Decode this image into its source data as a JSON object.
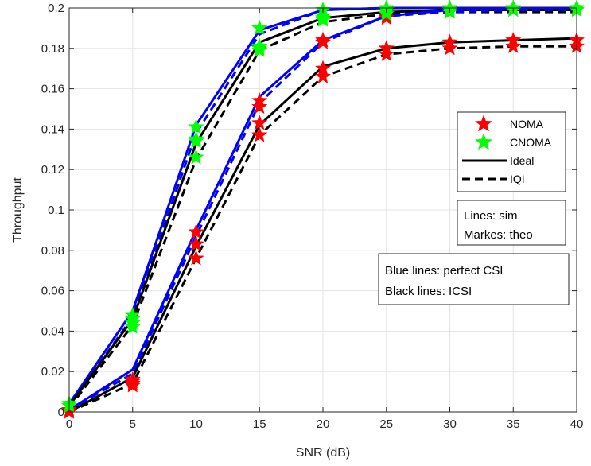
{
  "chart_data": {
    "type": "line",
    "title": "",
    "xlabel": "SNR (dB)",
    "ylabel": "Throughput",
    "xlim": [
      0,
      40
    ],
    "ylim": [
      0,
      0.2
    ],
    "x_ticks": [
      0,
      5,
      10,
      15,
      20,
      25,
      30,
      35,
      40
    ],
    "y_ticks": [
      0,
      0.02,
      0.04,
      0.06,
      0.08,
      0.1,
      0.12,
      0.14,
      0.16,
      0.18,
      0.2
    ],
    "x_tick_labels": [
      "0",
      "5",
      "10",
      "15",
      "20",
      "25",
      "30",
      "35",
      "40"
    ],
    "y_tick_labels": [
      "0",
      "0.02",
      "0.04",
      "0.06",
      "0.08",
      "0.1",
      "0.12",
      "0.14",
      "0.16",
      "0.18",
      "0.2"
    ],
    "grid": true,
    "x": [
      0,
      5,
      10,
      15,
      20,
      25,
      30,
      35,
      40
    ],
    "series": [
      {
        "key": "cnoma_perfect_ideal_sim",
        "color": "#0000ff",
        "dash": "solid",
        "values": [
          0.004,
          0.05,
          0.142,
          0.189,
          0.199,
          0.2,
          0.2,
          0.2,
          0.2
        ]
      },
      {
        "key": "cnoma_perfect_iqi_sim",
        "color": "#0000ff",
        "dash": "dashed",
        "values": [
          0.003,
          0.047,
          0.138,
          0.187,
          0.199,
          0.2,
          0.2,
          0.2,
          0.2
        ]
      },
      {
        "key": "cnoma_icsi_ideal_sim",
        "color": "#000000",
        "dash": "solid",
        "values": [
          0.003,
          0.046,
          0.133,
          0.183,
          0.195,
          0.198,
          0.199,
          0.199,
          0.199
        ]
      },
      {
        "key": "cnoma_icsi_iqi_sim",
        "color": "#000000",
        "dash": "dashed",
        "values": [
          0.002,
          0.043,
          0.125,
          0.179,
          0.193,
          0.197,
          0.198,
          0.198,
          0.198
        ]
      },
      {
        "key": "noma_perfect_ideal_sim",
        "color": "#0000ff",
        "dash": "solid",
        "values": [
          0.001,
          0.021,
          0.09,
          0.156,
          0.184,
          0.196,
          0.199,
          0.2,
          0.2
        ]
      },
      {
        "key": "noma_perfect_iqi_sim",
        "color": "#0000ff",
        "dash": "dashed",
        "values": [
          0.001,
          0.019,
          0.087,
          0.153,
          0.183,
          0.196,
          0.198,
          0.199,
          0.199
        ]
      },
      {
        "key": "noma_icsi_ideal_sim",
        "color": "#000000",
        "dash": "solid",
        "values": [
          0.0,
          0.017,
          0.082,
          0.142,
          0.171,
          0.18,
          0.183,
          0.184,
          0.185
        ]
      },
      {
        "key": "noma_icsi_iqi_sim",
        "color": "#000000",
        "dash": "dashed",
        "values": [
          0.0,
          0.014,
          0.076,
          0.137,
          0.166,
          0.177,
          0.18,
          0.181,
          0.181
        ]
      }
    ],
    "markers": [
      {
        "key": "noma_theo",
        "color": "#ff0000",
        "groups": [
          [
            0.001,
            0.016,
            0.089,
            0.154,
            0.184,
            0.196,
            0.199,
            0.2,
            0.2
          ],
          [
            0.0,
            0.014,
            0.083,
            0.151,
            0.183,
            0.195,
            0.198,
            0.199,
            0.199
          ],
          [
            0.0,
            0.015,
            0.083,
            0.143,
            0.17,
            0.18,
            0.183,
            0.184,
            0.184
          ],
          [
            0.0,
            0.013,
            0.076,
            0.137,
            0.166,
            0.177,
            0.18,
            0.181,
            0.181
          ]
        ]
      },
      {
        "key": "cnoma_theo",
        "color": "#00ff00",
        "groups": [
          [
            0.004,
            0.048,
            0.141,
            0.19,
            0.199,
            0.2,
            0.2,
            0.2,
            0.2
          ],
          [
            0.004,
            0.046,
            0.135,
            0.181,
            0.196,
            0.199,
            0.199,
            0.2,
            0.2
          ],
          [
            0.003,
            0.044,
            0.134,
            0.18,
            0.195,
            0.198,
            0.199,
            0.199,
            0.199
          ],
          [
            0.003,
            0.042,
            0.126,
            0.179,
            0.194,
            0.197,
            0.198,
            0.199,
            0.199
          ]
        ]
      }
    ],
    "legend": {
      "placement": "right-middle",
      "entries": [
        {
          "label": "NOMA",
          "kind": "marker",
          "color": "#ff0000"
        },
        {
          "label": "CNOMA",
          "kind": "marker",
          "color": "#00ff00"
        },
        {
          "label": "Ideal",
          "kind": "line",
          "dash": "solid",
          "color": "#000000"
        },
        {
          "label": "IQI",
          "kind": "line",
          "dash": "dashed",
          "color": "#000000"
        }
      ]
    },
    "annotations": {
      "box1": [
        "Lines: sim",
        "Markes: theo"
      ],
      "box2": [
        "Blue lines: perfect CSI",
        "Black lines: ICSI"
      ]
    }
  }
}
